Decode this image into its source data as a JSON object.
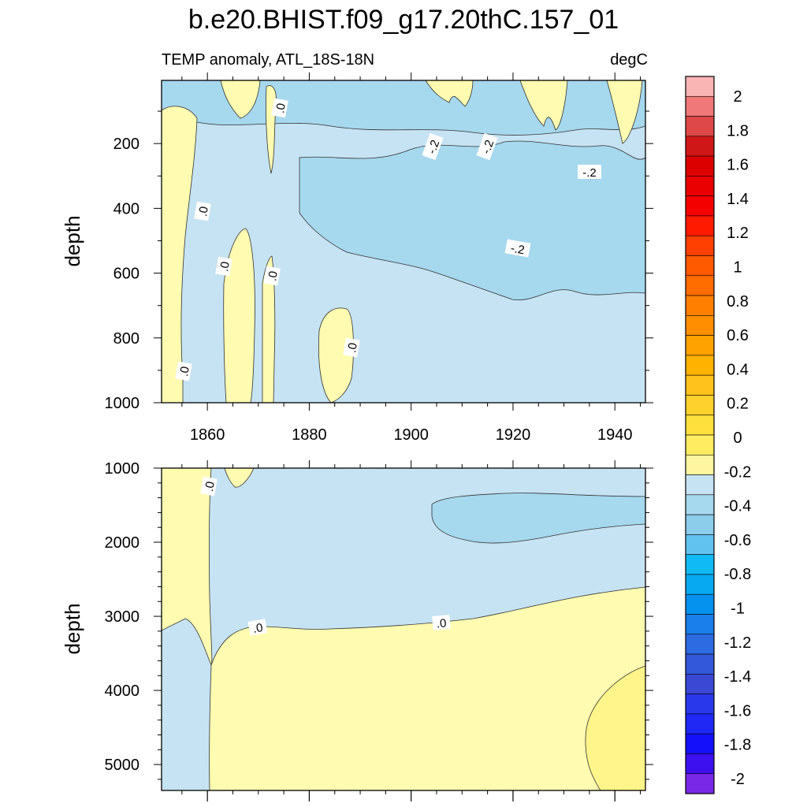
{
  "title": "b.e20.BHIST.f09_g17.20thC.157_01",
  "subtitle_left": "TEMP anomaly, ATL_18S-18N",
  "subtitle_right": "degC",
  "colors": {
    "frame": "#000000",
    "contour_line": "#333333",
    "fill_zero_to_neg02": "#c6e3f3",
    "fill_neg02_to_neg04": "#a6d8ee",
    "fill_zero_to_pos02": "#fffbb0",
    "fill_pos02_to_pos04": "#fff58a"
  },
  "colorbar": {
    "tick_labels": [
      "2",
      "1.8",
      "1.6",
      "1.4",
      "1.2",
      "1",
      "0.8",
      "0.6",
      "0.4",
      "0.2",
      "0",
      "-0.2",
      "-0.4",
      "-0.6",
      "-0.8",
      "-1",
      "-1.2",
      "-1.4",
      "-1.6",
      "-1.8",
      "-2"
    ],
    "colors": [
      "#f9b4b4",
      "#f07878",
      "#de4848",
      "#cf1717",
      "#dd0000",
      "#ea0000",
      "#f50000",
      "#ff1a00",
      "#ff4000",
      "#ff5a00",
      "#ff6c00",
      "#ff7f00",
      "#ff8f00",
      "#ffa200",
      "#ffb200",
      "#ffc21c",
      "#ffd12c",
      "#ffe03c",
      "#ffec60",
      "#fff5a0",
      "#c6e3f3",
      "#a6d8ee",
      "#8bcdea",
      "#62c2ef",
      "#10baf5",
      "#07a9f0",
      "#0591ee",
      "#1a7fea",
      "#2d6be3",
      "#3358d9",
      "#3a48d4",
      "#2a38ec",
      "#1f28f5",
      "#1410fa",
      "#3d10f0",
      "#7a28e8"
    ]
  },
  "chart_data": [
    {
      "type": "heatmap",
      "panel": "upper",
      "xlabel": "",
      "ylabel": "depth",
      "xlim": [
        1851,
        1946
      ],
      "ylim": [
        1000,
        5
      ],
      "x_ticks": [
        "1860",
        "1880",
        "1900",
        "1920",
        "1940"
      ],
      "y_ticks": [
        "200",
        "400",
        "600",
        "800",
        "1000"
      ],
      "contour_labels": [
        ".0",
        ".0",
        ".0",
        ".0",
        ".0",
        ".0",
        "-.2",
        "-.2",
        "-.2",
        "-.2"
      ],
      "contour_interval": 0.2,
      "features": [
        {
          "sign": "positive",
          "x_range": [
            1851,
            1856
          ],
          "depth_range": [
            5,
            1000
          ]
        },
        {
          "sign": "positive",
          "x_range": [
            1863,
            1869
          ],
          "depth_range": [
            430,
            1000
          ]
        },
        {
          "sign": "positive",
          "x_range": [
            1870,
            1872
          ],
          "depth_range": [
            540,
            1000
          ]
        },
        {
          "sign": "positive",
          "x_range": [
            1883,
            1889
          ],
          "depth_range": [
            690,
            1000
          ]
        },
        {
          "sign": "negative_below_-0.2",
          "x_range": [
            1880,
            1946
          ],
          "depth_range": [
            220,
            680
          ]
        }
      ]
    },
    {
      "type": "heatmap",
      "panel": "lower",
      "xlabel": "",
      "ylabel": "depth",
      "xlim": [
        1851,
        1946
      ],
      "ylim": [
        5350,
        1000
      ],
      "x_ticks": [],
      "y_ticks": [
        "1000",
        "2000",
        "3000",
        "4000",
        "5000"
      ],
      "contour_labels": [
        ".0",
        ".0",
        ".0"
      ],
      "contour_interval": 0.2,
      "features": [
        {
          "sign": "positive",
          "x_range": [
            1851,
            1861
          ],
          "depth_range": [
            1000,
            3200
          ]
        },
        {
          "sign": "positive",
          "x_range": [
            1861,
            1946
          ],
          "depth_range": [
            2650,
            5350
          ]
        },
        {
          "sign": "negative_below_-0.2",
          "x_range": [
            1903,
            1946
          ],
          "depth_range": [
            1300,
            2050
          ]
        },
        {
          "sign": "above_0.2",
          "x_range": [
            1932,
            1946
          ],
          "depth_range": [
            3700,
            5350
          ]
        }
      ]
    }
  ]
}
